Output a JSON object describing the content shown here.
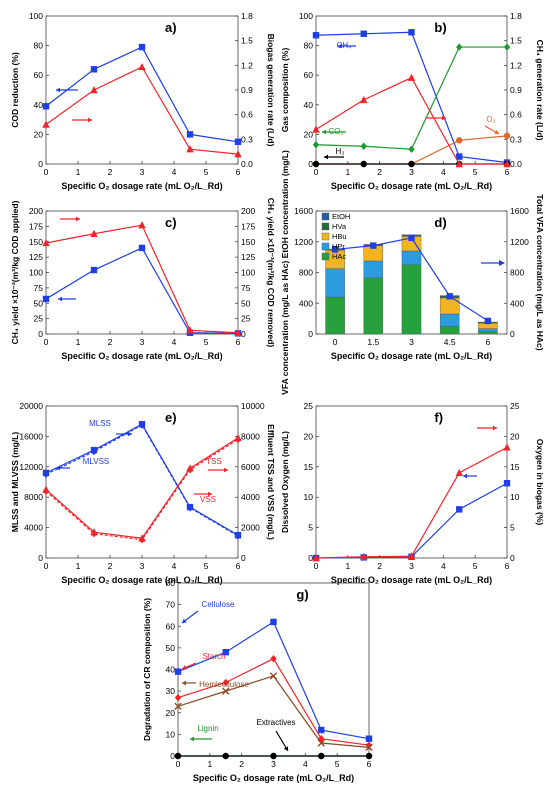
{
  "colors": {
    "blue": "#1f3fe6",
    "red": "#f0252b",
    "green": "#1c9a2e",
    "black": "#000000",
    "orange": "#e0662c",
    "brown": "#8a4a26",
    "stack": {
      "EtOH": "#1f5fa0",
      "HVa": "#246b3a",
      "HBu": "#f2b51f",
      "HPr": "#2c9be0",
      "HAc": "#27a13b"
    }
  },
  "chart_data": [
    {
      "id": "a",
      "type": "line",
      "panel_label": "a)",
      "x": [
        0,
        1.5,
        3,
        4.5,
        6
      ],
      "xlabel": "Specific O₂ dosage rate (mL O₂/L_Rd)",
      "ylabel": "COD reduction (%)",
      "y2label": "Biogas generation rate (L/d)",
      "ylim": [
        0,
        100
      ],
      "yticks": [
        "0",
        "20",
        "40",
        "60",
        "80",
        "100"
      ],
      "y2lim": [
        0,
        1.8
      ],
      "y2ticks": [
        "0.0",
        "0.3",
        "0.6",
        "0.9",
        "1.2",
        "1.5",
        "1.8"
      ],
      "xticks": [
        "0",
        "1",
        "2",
        "3",
        "4",
        "5",
        "6"
      ],
      "series": [
        {
          "axis": "left",
          "color": "blue",
          "marker": "square",
          "values": [
            39,
            64,
            79,
            20,
            15
          ]
        },
        {
          "axis": "right",
          "color": "red",
          "marker": "triangle",
          "values": [
            0.48,
            0.9,
            1.18,
            0.18,
            0.12
          ]
        }
      ]
    },
    {
      "id": "b",
      "type": "line",
      "panel_label": "b)",
      "x": [
        0,
        1.5,
        3,
        4.5,
        6
      ],
      "xlabel": "Specific O₂ dosage rate (mL O₂/L_Rd)",
      "ylabel": "Gas composition (%)",
      "y2label": "CH₄ generation rate (L/d)",
      "ylim": [
        0,
        100
      ],
      "yticks": [
        "0",
        "20",
        "40",
        "60",
        "80",
        "100"
      ],
      "y2lim": [
        0,
        1.8
      ],
      "y2ticks": [
        "0.0",
        "0.3",
        "0.6",
        "0.9",
        "1.2",
        "1.5",
        "1.8"
      ],
      "xticks": [
        "0",
        "1",
        "2",
        "3",
        "4",
        "5",
        "6"
      ],
      "series": [
        {
          "name": "CH₄",
          "axis": "left",
          "color": "blue",
          "marker": "square",
          "values": [
            87,
            88,
            89,
            5,
            1
          ]
        },
        {
          "name": "CO₂",
          "axis": "left",
          "color": "green",
          "marker": "diamond",
          "values": [
            13,
            12,
            10,
            79,
            79
          ]
        },
        {
          "name": "O₂",
          "axis": "left",
          "color": "orange",
          "marker": "circle",
          "values": [
            0,
            0,
            0,
            16,
            19
          ]
        },
        {
          "name": "H₂",
          "axis": "left",
          "color": "black",
          "marker": "circle",
          "values": [
            0,
            0,
            0,
            0,
            0
          ]
        },
        {
          "axis": "right",
          "color": "red",
          "marker": "triangle",
          "values": [
            0.42,
            0.78,
            1.05,
            0,
            0
          ]
        }
      ]
    },
    {
      "id": "c",
      "type": "line",
      "panel_label": "c)",
      "x": [
        0,
        1.5,
        3,
        4.5,
        6
      ],
      "xlabel": "Specific O₂ dosage rate (mL O₂/L_Rd)",
      "ylabel": "CH₄ yield ×10⁻³(m³/kg COD applied)",
      "y2label": "CH₄ yield ×10⁻³(m³/kg COD removed)",
      "ylim": [
        0,
        200
      ],
      "yticks": [
        "0",
        "25",
        "50",
        "75",
        "100",
        "125",
        "150",
        "175",
        "200"
      ],
      "y2lim": [
        0,
        200
      ],
      "y2ticks": [
        "0",
        "25",
        "50",
        "75",
        "100",
        "125",
        "150",
        "175",
        "200"
      ],
      "xticks": [
        "0",
        "1",
        "2",
        "3",
        "4",
        "5",
        "6"
      ],
      "series": [
        {
          "axis": "left",
          "color": "blue",
          "marker": "square",
          "values": [
            57,
            104,
            140,
            2,
            1
          ]
        },
        {
          "axis": "right",
          "color": "red",
          "marker": "triangle",
          "values": [
            148,
            163,
            177,
            6,
            2
          ]
        }
      ]
    },
    {
      "id": "d",
      "type": "bar",
      "panel_label": "d)",
      "categories": [
        "0",
        "1.5",
        "3",
        "4.5",
        "6"
      ],
      "xlabel": "Specific O₂ dosage rate (mL O₂/L_Rd)",
      "ylabel": "VFA concentration (mg/L as HAc) EtOH concentration (mg/L)",
      "y2label": "Total VFA concentration (mg/L as HAc)",
      "ylim": [
        0,
        1600
      ],
      "yticks": [
        "0",
        "400",
        "800",
        "1200",
        "1600"
      ],
      "y2lim": [
        0,
        1600
      ],
      "y2ticks": [
        "0",
        "400",
        "800",
        "1200",
        "1600"
      ],
      "stack_order": [
        "HAc",
        "HPr",
        "HBu",
        "HVa",
        "EtOH"
      ],
      "legend": [
        "EtOH",
        "HVa",
        "HBu",
        "HPr",
        "HAc"
      ],
      "stacks": {
        "HAc": [
          480,
          730,
          900,
          100,
          30
        ],
        "HPr": [
          370,
          220,
          180,
          160,
          40
        ],
        "HBu": [
          240,
          200,
          190,
          210,
          70
        ],
        "HVa": [
          5,
          5,
          10,
          20,
          10
        ],
        "EtOH": [
          10,
          10,
          10,
          10,
          5
        ]
      },
      "line": {
        "axis": "right",
        "color": "blue",
        "marker": "square",
        "values": [
          1100,
          1150,
          1250,
          490,
          170
        ]
      }
    },
    {
      "id": "e",
      "type": "line",
      "panel_label": "e)",
      "x": [
        0,
        1.5,
        3,
        4.5,
        6
      ],
      "xlabel": "Specific O₂ dosage rate (mL O₂/L_Rd)",
      "ylabel": "MLSS and MLVSS (mg/L)",
      "y2label": "Effluent TSS and VSS (mg/L)",
      "ylim": [
        0,
        20000
      ],
      "yticks": [
        "0",
        "4000",
        "8000",
        "12000",
        "16000",
        "20000"
      ],
      "y2lim": [
        0,
        10000
      ],
      "y2ticks": [
        "0",
        "2000",
        "4000",
        "6000",
        "8000",
        "10000"
      ],
      "xticks": [
        "0",
        "1",
        "2",
        "3",
        "4",
        "5",
        "6"
      ],
      "series": [
        {
          "name": "MLSS",
          "axis": "left",
          "color": "blue",
          "marker": "square",
          "dashed": false,
          "values": [
            11200,
            14200,
            17600,
            6700,
            3000
          ]
        },
        {
          "name": "MLVSS",
          "axis": "left",
          "color": "blue",
          "marker": "diamond",
          "dashed": true,
          "values": [
            11000,
            14000,
            17500,
            6600,
            2900
          ]
        },
        {
          "name": "TSS",
          "axis": "right",
          "color": "red",
          "marker": "triangle",
          "dashed": false,
          "values": [
            4500,
            1700,
            1300,
            5900,
            7900
          ]
        },
        {
          "name": "VSS",
          "axis": "right",
          "color": "red",
          "marker": "diamond",
          "dashed": true,
          "values": [
            4400,
            1600,
            1200,
            5800,
            7800
          ]
        }
      ]
    },
    {
      "id": "f",
      "type": "line",
      "panel_label": "f)",
      "x": [
        0,
        1.5,
        3,
        4.5,
        6
      ],
      "xlabel": "Specific O₂ dosage rate (mL O₂/L_Rd)",
      "ylabel": "Dissolved Oxygen (mg/L)",
      "y2label": "Oxygen in biogas (%)",
      "ylim": [
        0,
        25
      ],
      "yticks": [
        "0",
        "5",
        "10",
        "15",
        "20",
        "25"
      ],
      "y2lim": [
        0,
        25
      ],
      "y2ticks": [
        "0",
        "5",
        "10",
        "15",
        "20",
        "25"
      ],
      "xticks": [
        "0",
        "1",
        "2",
        "3",
        "4",
        "5",
        "6"
      ],
      "series": [
        {
          "axis": "left",
          "color": "blue",
          "marker": "square",
          "values": [
            0,
            0.1,
            0.2,
            8,
            12.3
          ]
        },
        {
          "axis": "right",
          "color": "red",
          "marker": "triangle",
          "values": [
            0,
            0.2,
            0.3,
            14,
            18.2
          ]
        }
      ]
    },
    {
      "id": "g",
      "type": "line",
      "panel_label": "g)",
      "x": [
        0,
        1.5,
        3,
        4.5,
        6
      ],
      "xlabel": "Specific O₂ dosage rate (mL O₂/L_Rd)",
      "ylabel": "Degradation of CR composition (%)",
      "ylim": [
        0,
        80
      ],
      "yticks": [
        "0",
        "10",
        "20",
        "30",
        "40",
        "50",
        "60",
        "70",
        "80"
      ],
      "xticks": [
        "0",
        "1",
        "2",
        "3",
        "4",
        "5",
        "6"
      ],
      "series": [
        {
          "name": "Cellulose",
          "color": "blue",
          "marker": "square",
          "values": [
            39,
            48,
            62,
            12,
            8
          ]
        },
        {
          "name": "Starch",
          "color": "red",
          "marker": "diamond",
          "values": [
            27,
            34,
            45,
            8,
            5
          ]
        },
        {
          "name": "Hemicellulose",
          "color": "brown",
          "marker": "cross",
          "values": [
            23,
            30,
            37,
            6,
            4
          ]
        },
        {
          "name": "Lignin",
          "color": "green",
          "marker": "circle",
          "values": [
            0,
            0,
            0,
            0,
            0
          ]
        },
        {
          "name": "Extractives",
          "color": "black",
          "marker": "circle",
          "values": [
            0,
            0,
            0,
            0,
            0
          ]
        }
      ]
    }
  ]
}
